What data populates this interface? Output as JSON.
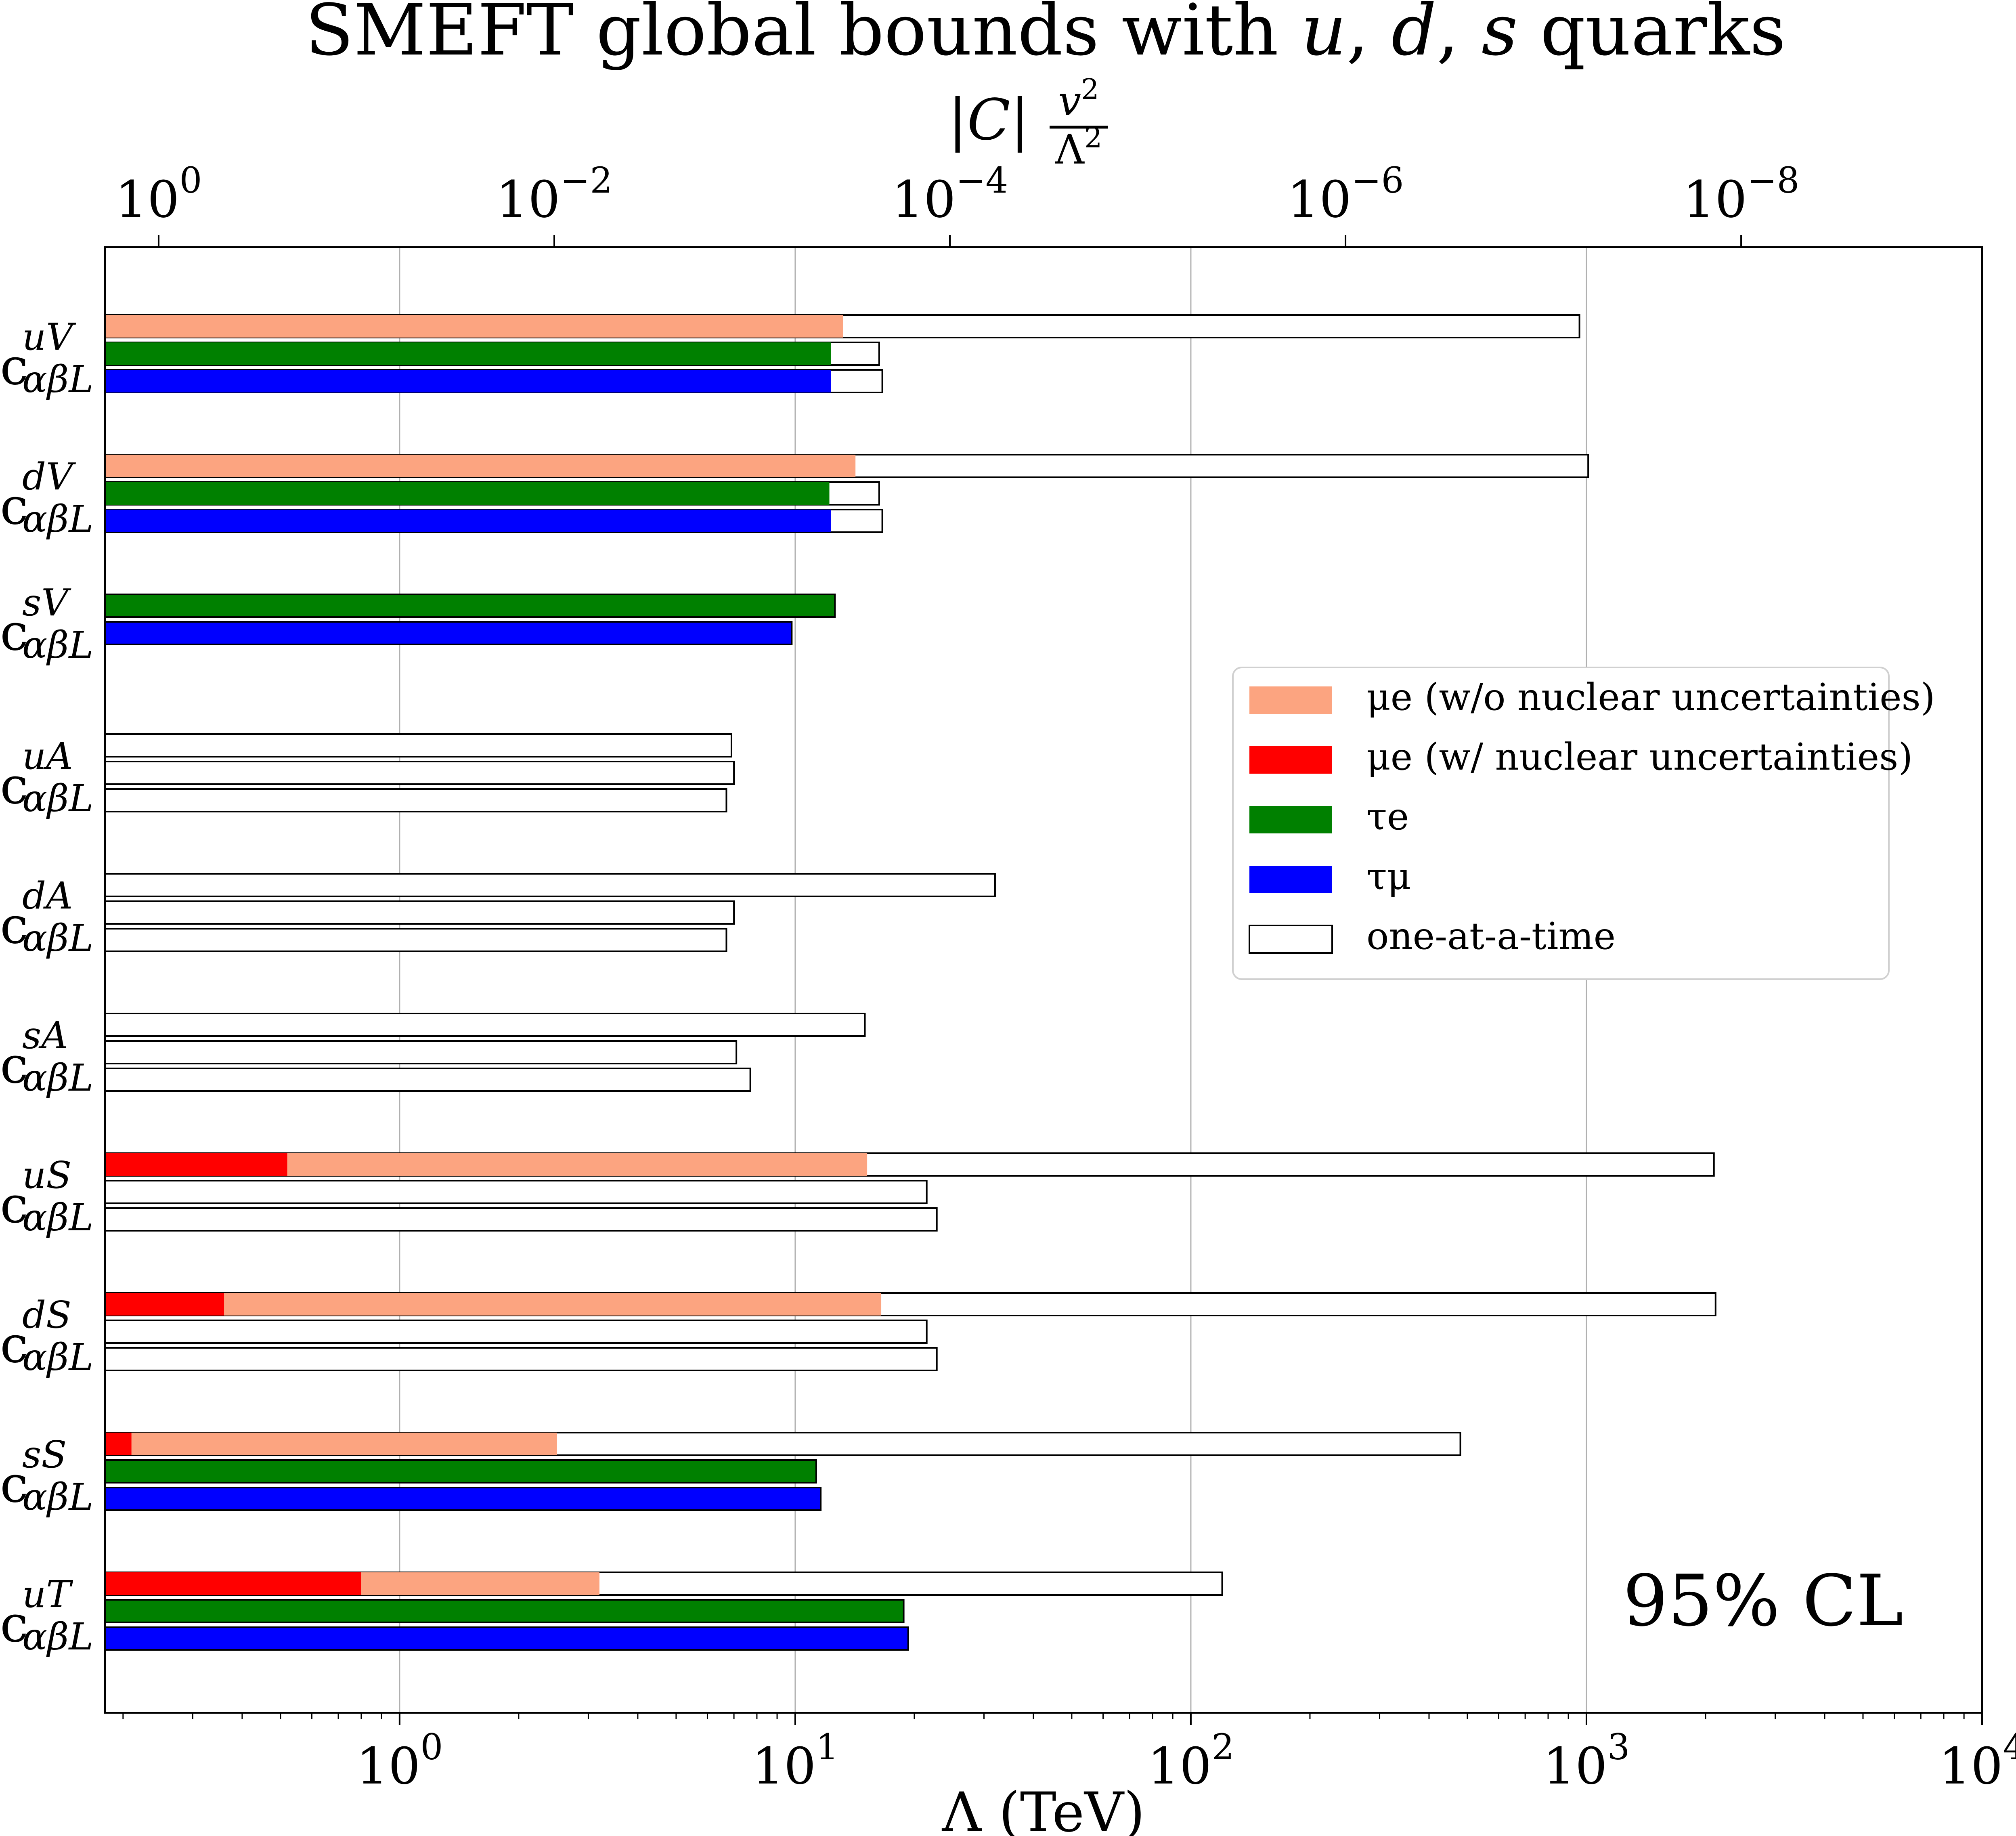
{
  "chart_data": {
    "type": "bar",
    "orientation": "horizontal",
    "title": "SMEFT global bounds with u, d, s quarks",
    "title_parts": {
      "prefix": "SMEFT global bounds with ",
      "q1": "u",
      "sep1": ", ",
      "q2": "d",
      "sep2": ", ",
      "q3": "s",
      "suffix": " quarks"
    },
    "xlabel": "Λ (TeV)",
    "top_xlabel": {
      "lhs": "|C|",
      "num_base": "v",
      "num_exp": "2",
      "den_base": "Λ",
      "den_exp": "2"
    },
    "xscale": "log",
    "xlim": [
      0.18,
      10000
    ],
    "bottom_ticks": [
      {
        "base": "10",
        "exp": "0",
        "value": 1
      },
      {
        "base": "10",
        "exp": "1",
        "value": 10
      },
      {
        "base": "10",
        "exp": "2",
        "value": 100
      },
      {
        "base": "10",
        "exp": "3",
        "value": 1000
      },
      {
        "base": "10",
        "exp": "4",
        "value": 10000
      }
    ],
    "top_ticks": [
      {
        "base": "10",
        "exp": "0",
        "value": 1
      },
      {
        "base": "10",
        "exp": "−2",
        "value": 0.01
      },
      {
        "base": "10",
        "exp": "−4",
        "value": 0.0001
      },
      {
        "base": "10",
        "exp": "−6",
        "value": 1e-06
      },
      {
        "base": "10",
        "exp": "−8",
        "value": 1e-08
      }
    ],
    "grid": true,
    "legend_position": "center-right",
    "annotation": "95% CL",
    "series": [
      {
        "key": "mue_wo",
        "name": "μe (w/o nuclear uncertainties)",
        "color": "#fca480"
      },
      {
        "key": "mue_w",
        "name": "μe (w/ nuclear uncertainties)",
        "color": "#ff0000"
      },
      {
        "key": "taue",
        "name": "τe",
        "color": "#008000"
      },
      {
        "key": "taumu",
        "name": "τμ",
        "color": "#0000ff"
      },
      {
        "key": "oaat",
        "name": "one-at-a-time",
        "color": "#ffffff"
      }
    ],
    "categories": [
      {
        "label": {
          "base": "c",
          "sup": "uV",
          "sub": "αβL"
        },
        "rows": [
          {
            "channel": "μe",
            "oaat": 960,
            "mue_wo": 13.2
          },
          {
            "channel": "τe",
            "oaat": 16.3,
            "taue": 12.3
          },
          {
            "channel": "τμ",
            "oaat": 16.6,
            "taumu": 12.3
          }
        ]
      },
      {
        "label": {
          "base": "c",
          "sup": "dV",
          "sub": "αβL"
        },
        "rows": [
          {
            "channel": "μe",
            "oaat": 1010,
            "mue_wo": 14.2
          },
          {
            "channel": "τe",
            "oaat": 16.3,
            "taue": 12.2
          },
          {
            "channel": "τμ",
            "oaat": 16.6,
            "taumu": 12.3
          }
        ]
      },
      {
        "label": {
          "base": "c",
          "sup": "sV",
          "sub": "αβL"
        },
        "rows": [
          {
            "channel": "τe",
            "taue": 12.6
          },
          {
            "channel": "τμ",
            "taumu": 9.8
          }
        ]
      },
      {
        "label": {
          "base": "c",
          "sup": "uA",
          "sub": "αβL"
        },
        "rows": [
          {
            "channel": "μe",
            "oaat": 6.9
          },
          {
            "channel": "τe",
            "oaat": 7.0
          },
          {
            "channel": "τμ",
            "oaat": 6.7
          }
        ]
      },
      {
        "label": {
          "base": "c",
          "sup": "dA",
          "sub": "αβL"
        },
        "rows": [
          {
            "channel": "μe",
            "oaat": 32
          },
          {
            "channel": "τe",
            "oaat": 7.0
          },
          {
            "channel": "τμ",
            "oaat": 6.7
          }
        ]
      },
      {
        "label": {
          "base": "c",
          "sup": "sA",
          "sub": "αβL"
        },
        "rows": [
          {
            "channel": "μe",
            "oaat": 15.0
          },
          {
            "channel": "τe",
            "oaat": 7.1
          },
          {
            "channel": "τμ",
            "oaat": 7.7
          }
        ]
      },
      {
        "label": {
          "base": "c",
          "sup": "uS",
          "sub": "αβL"
        },
        "rows": [
          {
            "channel": "μe",
            "oaat": 2100,
            "mue_wo": 15.2,
            "mue_w": 0.52
          },
          {
            "channel": "τe",
            "oaat": 21.5
          },
          {
            "channel": "τμ",
            "oaat": 22.8
          }
        ]
      },
      {
        "label": {
          "base": "c",
          "sup": "dS",
          "sub": "αβL"
        },
        "rows": [
          {
            "channel": "μe",
            "oaat": 2120,
            "mue_wo": 16.5,
            "mue_w": 0.36
          },
          {
            "channel": "τe",
            "oaat": 21.5
          },
          {
            "channel": "τμ",
            "oaat": 22.8
          }
        ]
      },
      {
        "label": {
          "base": "c",
          "sup": "sS",
          "sub": "αβL"
        },
        "rows": [
          {
            "channel": "μe",
            "oaat": 480,
            "mue_wo": 2.5,
            "mue_w": 0.21
          },
          {
            "channel": "τe",
            "taue": 11.3
          },
          {
            "channel": "τμ",
            "taumu": 11.6
          }
        ]
      },
      {
        "label": {
          "base": "c",
          "sup": "uT",
          "sub": "αβL"
        },
        "rows": [
          {
            "channel": "μe",
            "oaat": 120,
            "mue_wo": 3.2,
            "mue_w": 0.8
          },
          {
            "channel": "τe",
            "taue": 18.8
          },
          {
            "channel": "τμ",
            "taumu": 19.3
          }
        ]
      }
    ]
  }
}
